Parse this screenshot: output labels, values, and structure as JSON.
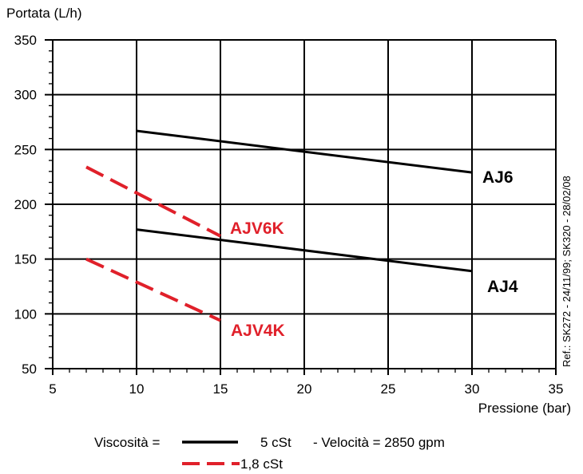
{
  "chart_data": {
    "type": "line",
    "ylabel": "Portata (L/h)",
    "xlabel": "Pressione  (bar)",
    "xlim": [
      5,
      35
    ],
    "ylim": [
      50,
      350
    ],
    "x_ticks": [
      "5",
      "10",
      "15",
      "20",
      "25",
      "30",
      "35"
    ],
    "y_ticks": [
      "50",
      "100",
      "150",
      "200",
      "250",
      "300",
      "350"
    ],
    "grid": true,
    "series": [
      {
        "name": "AJ6",
        "style": "solid",
        "color": "#000000",
        "x": [
          10,
          30
        ],
        "y": [
          267,
          229
        ]
      },
      {
        "name": "AJ4",
        "style": "solid",
        "color": "#000000",
        "x": [
          10,
          30
        ],
        "y": [
          177,
          139
        ]
      },
      {
        "name": "AJV6K",
        "style": "dashed",
        "color": "#e0202a",
        "x": [
          7,
          15
        ],
        "y": [
          234,
          171
        ]
      },
      {
        "name": "AJV4K",
        "style": "dashed",
        "color": "#e0202a",
        "x": [
          7,
          15
        ],
        "y": [
          150,
          94
        ]
      }
    ],
    "annotations": {
      "ref": "Ref.: SK272 - 24/11/99; SK320 - 28/02/08"
    },
    "legend": {
      "prefix": "Viscosità  =",
      "solid_label": "5 cSt",
      "suffix": "- Velocità = 2850 gpm",
      "dashed_label": "1,8 cSt"
    }
  }
}
